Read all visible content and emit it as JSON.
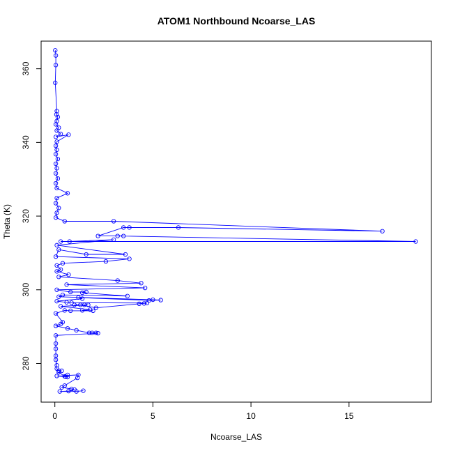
{
  "chart_data": {
    "type": "line",
    "title": "ATOM1 Northbound Ncoarse_LAS",
    "xlabel": "Ncoarse_LAS",
    "ylabel": "Theta (K)",
    "xlim": [
      -0.7,
      19.2
    ],
    "ylim": [
      269.5,
      367.5
    ],
    "xticks": [
      0,
      5,
      10,
      15
    ],
    "yticks": [
      280,
      300,
      320,
      340,
      360
    ],
    "grid": false,
    "legend": "none",
    "series_color": "#0000ff",
    "marker": "open-circle",
    "series": [
      {
        "points": [
          [
            0.02,
            365.0
          ],
          [
            0.05,
            363.6
          ],
          [
            0.05,
            361.0
          ],
          [
            0.02,
            356.2
          ],
          [
            0.1,
            348.5
          ],
          [
            0.08,
            347.6
          ],
          [
            0.15,
            346.9
          ],
          [
            0.1,
            345.8
          ],
          [
            0.05,
            344.9
          ],
          [
            0.2,
            344.0
          ],
          [
            0.1,
            343.2
          ],
          [
            0.3,
            342.3
          ],
          [
            0.05,
            341.5
          ],
          [
            0.7,
            342.1
          ],
          [
            0.1,
            340.2
          ],
          [
            0.05,
            339.1
          ],
          [
            0.1,
            338.0
          ],
          [
            0.05,
            336.8
          ],
          [
            0.15,
            335.5
          ],
          [
            0.05,
            334.2
          ],
          [
            0.1,
            333.0
          ],
          [
            0.05,
            331.6
          ],
          [
            0.15,
            330.2
          ],
          [
            0.05,
            328.9
          ],
          [
            0.1,
            327.6
          ],
          [
            0.65,
            326.2
          ],
          [
            0.1,
            324.9
          ],
          [
            0.05,
            323.5
          ],
          [
            0.2,
            322.2
          ],
          [
            0.1,
            320.9
          ],
          [
            0.05,
            319.6
          ],
          [
            0.5,
            318.6
          ],
          [
            3.0,
            318.6
          ],
          [
            16.7,
            315.9
          ],
          [
            6.3,
            316.9
          ],
          [
            3.8,
            316.9
          ],
          [
            3.5,
            316.9
          ],
          [
            2.2,
            314.6
          ],
          [
            3.5,
            314.6
          ],
          [
            3.2,
            314.6
          ],
          [
            18.4,
            313.1
          ],
          [
            0.3,
            313.1
          ],
          [
            0.75,
            313.1
          ],
          [
            3.0,
            313.6
          ],
          [
            0.1,
            312.1
          ],
          [
            3.6,
            309.6
          ],
          [
            1.6,
            309.6
          ],
          [
            0.2,
            310.9
          ],
          [
            0.05,
            309.0
          ],
          [
            3.8,
            308.4
          ],
          [
            2.6,
            307.7
          ],
          [
            0.4,
            307.2
          ],
          [
            0.1,
            306.6
          ],
          [
            0.3,
            305.5
          ],
          [
            0.1,
            305.0
          ],
          [
            0.7,
            304.1
          ],
          [
            0.2,
            303.5
          ],
          [
            3.2,
            302.5
          ],
          [
            4.4,
            301.8
          ],
          [
            0.6,
            301.4
          ],
          [
            4.6,
            300.5
          ],
          [
            0.1,
            300.0
          ],
          [
            0.8,
            299.4
          ],
          [
            1.6,
            299.4
          ],
          [
            1.4,
            299.2
          ],
          [
            3.7,
            298.3
          ],
          [
            0.4,
            298.6
          ],
          [
            0.2,
            298.1
          ],
          [
            5.0,
            297.3
          ],
          [
            5.4,
            297.2
          ],
          [
            4.8,
            297.1
          ],
          [
            1.2,
            297.9
          ],
          [
            1.4,
            297.6
          ],
          [
            0.1,
            296.9
          ],
          [
            0.6,
            296.6
          ],
          [
            0.85,
            296.5
          ],
          [
            4.7,
            296.4
          ],
          [
            4.55,
            296.3
          ],
          [
            4.3,
            296.2
          ],
          [
            2.1,
            295.1
          ],
          [
            1.3,
            295.9
          ],
          [
            1.5,
            295.9
          ],
          [
            1.0,
            295.9
          ],
          [
            1.7,
            295.9
          ],
          [
            0.3,
            295.5
          ],
          [
            1.8,
            294.6
          ],
          [
            1.4,
            294.4
          ],
          [
            1.95,
            294.3
          ],
          [
            0.8,
            294.3
          ],
          [
            0.5,
            294.4
          ],
          [
            0.05,
            293.6
          ],
          [
            0.4,
            291.2
          ],
          [
            0.3,
            290.7
          ],
          [
            0.05,
            290.2
          ],
          [
            0.65,
            289.5
          ],
          [
            1.1,
            289.0
          ],
          [
            1.75,
            288.3
          ],
          [
            1.9,
            288.3
          ],
          [
            2.1,
            288.3
          ],
          [
            2.2,
            288.2
          ],
          [
            0.05,
            287.6
          ],
          [
            0.05,
            285.4
          ],
          [
            0.05,
            284.0
          ],
          [
            0.05,
            282.1
          ],
          [
            0.05,
            281.0
          ],
          [
            0.1,
            279.5
          ],
          [
            0.1,
            278.6
          ],
          [
            0.2,
            278.0
          ],
          [
            0.35,
            278.0
          ],
          [
            0.2,
            277.6
          ],
          [
            0.5,
            276.5
          ],
          [
            0.65,
            276.9
          ],
          [
            0.65,
            276.3
          ],
          [
            0.55,
            276.4
          ],
          [
            0.1,
            276.6
          ],
          [
            1.2,
            276.9
          ],
          [
            1.15,
            276.1
          ],
          [
            0.5,
            274.0
          ],
          [
            0.35,
            273.5
          ],
          [
            0.85,
            273.1
          ],
          [
            1.0,
            272.9
          ],
          [
            0.7,
            272.5
          ],
          [
            0.25,
            272.4
          ],
          [
            1.1,
            272.4
          ],
          [
            1.45,
            272.6
          ]
        ]
      }
    ]
  }
}
